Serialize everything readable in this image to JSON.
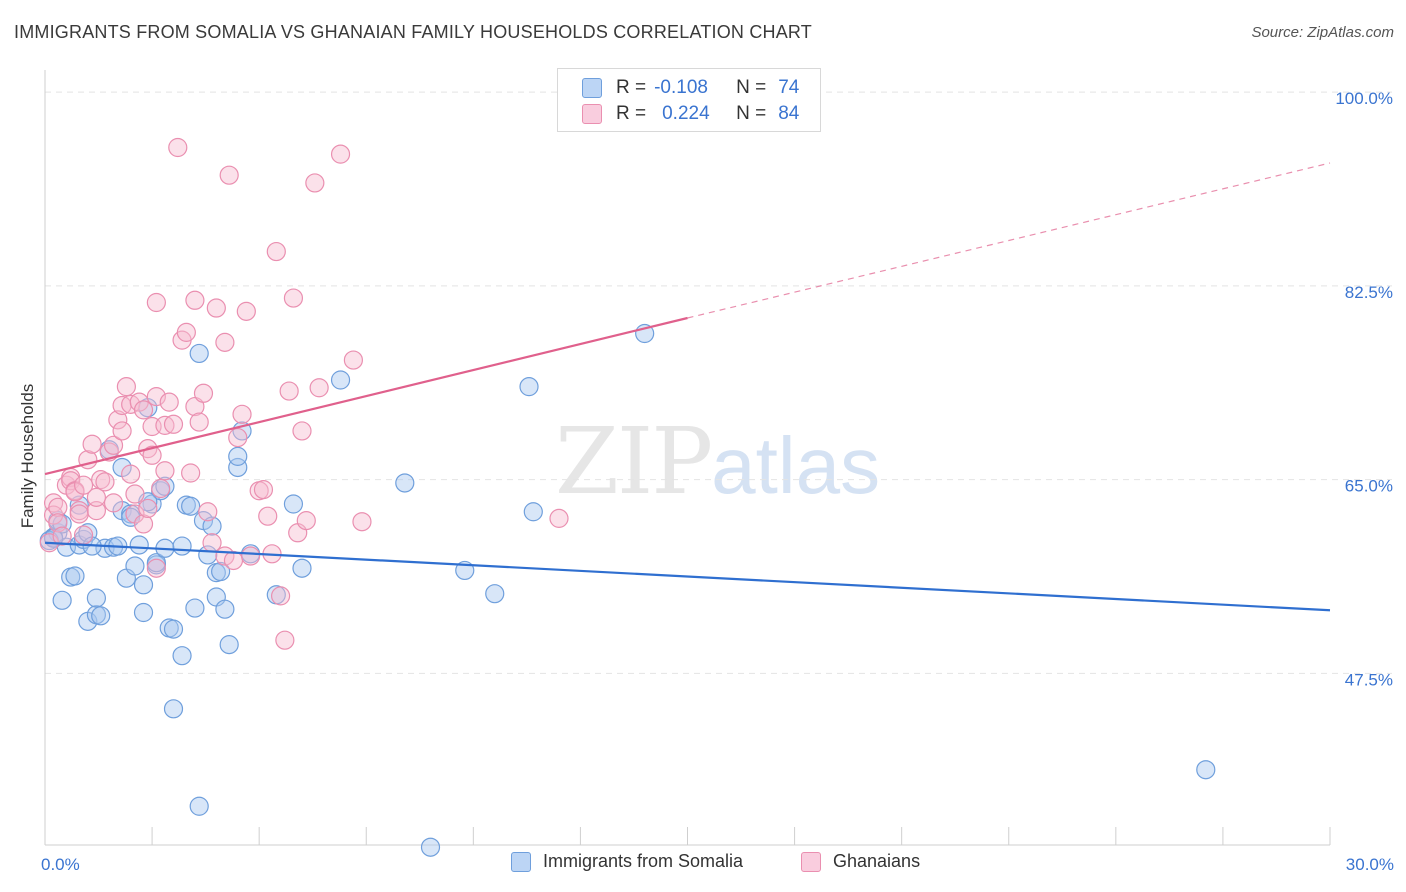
{
  "title": "IMMIGRANTS FROM SOMALIA VS GHANAIAN FAMILY HOUSEHOLDS CORRELATION CHART",
  "source": "Source: ZipAtlas.com",
  "watermark": {
    "zip": "ZIP",
    "atlas": "atlas"
  },
  "legend_top": [
    {
      "r_label": "R =",
      "r_value": "-0.108",
      "n_label": "N =",
      "n_value": "74"
    },
    {
      "r_label": "R =",
      "r_value": "0.224",
      "n_label": "N =",
      "n_value": "84"
    }
  ],
  "colors": {
    "blue_fill": "#a8c8f0",
    "blue_stroke": "#6f9fdc",
    "blue_line": "#2f6fd0",
    "pink_fill": "#f6bcd0",
    "pink_stroke": "#ea8fb0",
    "pink_line": "#e0608c",
    "grid": "#e4e4e4",
    "tick_label": "#3a74d0"
  },
  "chart_data": {
    "type": "scatter",
    "title": "IMMIGRANTS FROM SOMALIA VS GHANAIAN FAMILY HOUSEHOLDS CORRELATION CHART",
    "xlabel": "",
    "ylabel": "Family Households",
    "xlim": [
      0,
      30
    ],
    "ylim": [
      32,
      102
    ],
    "x_tick_labels": [
      {
        "value": 0,
        "label": "0.0%"
      },
      {
        "value": 30,
        "label": "30.0%"
      }
    ],
    "y_tick_labels": [
      {
        "value": 47.5,
        "label": "47.5%"
      },
      {
        "value": 65.0,
        "label": "65.0%"
      },
      {
        "value": 82.5,
        "label": "82.5%"
      },
      {
        "value": 100.0,
        "label": "100.0%"
      }
    ],
    "series": [
      {
        "name": "Immigrants from Somalia",
        "color_key": "blue",
        "trend": {
          "x": [
            0,
            30
          ],
          "y": [
            59.3,
            53.2
          ],
          "dashed_after": null
        },
        "points": [
          [
            0.2,
            59.8
          ],
          [
            0.3,
            60.2
          ],
          [
            0.3,
            61.3
          ],
          [
            0.4,
            61.0
          ],
          [
            0.5,
            58.9
          ],
          [
            0.4,
            54.1
          ],
          [
            0.6,
            56.2
          ],
          [
            0.7,
            56.3
          ],
          [
            0.8,
            59.1
          ],
          [
            0.9,
            59.6
          ],
          [
            1.0,
            60.2
          ],
          [
            0.8,
            62.7
          ],
          [
            1.0,
            52.2
          ],
          [
            1.2,
            52.8
          ],
          [
            1.2,
            54.3
          ],
          [
            1.3,
            52.7
          ],
          [
            1.4,
            58.8
          ],
          [
            1.6,
            58.9
          ],
          [
            1.7,
            59.0
          ],
          [
            1.5,
            67.7
          ],
          [
            1.8,
            66.1
          ],
          [
            1.8,
            62.2
          ],
          [
            1.9,
            56.1
          ],
          [
            2.0,
            61.9
          ],
          [
            2.2,
            59.1
          ],
          [
            2.1,
            57.2
          ],
          [
            2.3,
            55.5
          ],
          [
            2.3,
            53.0
          ],
          [
            2.4,
            71.5
          ],
          [
            2.5,
            62.8
          ],
          [
            2.6,
            57.3
          ],
          [
            2.6,
            57.5
          ],
          [
            2.7,
            64.0
          ],
          [
            2.8,
            64.4
          ],
          [
            2.8,
            58.8
          ],
          [
            2.9,
            51.6
          ],
          [
            3.0,
            51.5
          ],
          [
            3.0,
            44.3
          ],
          [
            3.2,
            49.1
          ],
          [
            3.3,
            62.7
          ],
          [
            3.4,
            62.6
          ],
          [
            3.6,
            76.4
          ],
          [
            3.7,
            61.3
          ],
          [
            3.5,
            53.4
          ],
          [
            3.6,
            35.5
          ],
          [
            3.8,
            58.2
          ],
          [
            3.9,
            60.8
          ],
          [
            4.0,
            54.4
          ],
          [
            4.0,
            56.6
          ],
          [
            4.1,
            56.7
          ],
          [
            4.2,
            53.3
          ],
          [
            4.3,
            50.1
          ],
          [
            4.5,
            66.1
          ],
          [
            4.5,
            67.1
          ],
          [
            4.6,
            69.4
          ],
          [
            4.8,
            58.3
          ],
          [
            5.4,
            54.6
          ],
          [
            5.8,
            62.8
          ],
          [
            6.0,
            57.0
          ],
          [
            6.9,
            74.0
          ],
          [
            8.4,
            64.7
          ],
          [
            9.0,
            31.8
          ],
          [
            9.8,
            56.8
          ],
          [
            10.5,
            54.7
          ],
          [
            11.3,
            73.4
          ],
          [
            11.4,
            62.1
          ],
          [
            14.0,
            78.2
          ],
          [
            27.1,
            38.8
          ],
          [
            0.1,
            59.5
          ],
          [
            0.2,
            59.7
          ],
          [
            1.1,
            59.0
          ],
          [
            2.4,
            63.0
          ],
          [
            3.2,
            59.0
          ],
          [
            2.0,
            61.6
          ]
        ]
      },
      {
        "name": "Ghanaians",
        "color_key": "pink",
        "trend": {
          "x": [
            0,
            15
          ],
          "y": [
            65.5,
            79.6
          ],
          "dashed_after": {
            "x": [
              15,
              30
            ],
            "y": [
              79.6,
              93.6
            ]
          }
        },
        "points": [
          [
            0.1,
            59.3
          ],
          [
            0.2,
            62.9
          ],
          [
            0.2,
            61.8
          ],
          [
            0.3,
            62.5
          ],
          [
            0.3,
            61.1
          ],
          [
            0.4,
            59.9
          ],
          [
            0.5,
            64.5
          ],
          [
            0.6,
            65.2
          ],
          [
            0.6,
            64.9
          ],
          [
            0.7,
            64.0
          ],
          [
            0.7,
            63.9
          ],
          [
            0.8,
            62.2
          ],
          [
            0.8,
            61.9
          ],
          [
            0.9,
            64.5
          ],
          [
            0.9,
            60.0
          ],
          [
            1.0,
            66.8
          ],
          [
            1.1,
            68.2
          ],
          [
            1.2,
            62.2
          ],
          [
            1.2,
            63.4
          ],
          [
            1.3,
            65.0
          ],
          [
            1.4,
            64.8
          ],
          [
            1.5,
            67.5
          ],
          [
            1.6,
            68.1
          ],
          [
            1.6,
            62.9
          ],
          [
            1.7,
            70.4
          ],
          [
            1.8,
            71.7
          ],
          [
            1.8,
            69.4
          ],
          [
            1.9,
            73.4
          ],
          [
            2.0,
            71.8
          ],
          [
            2.0,
            65.5
          ],
          [
            2.1,
            61.9
          ],
          [
            2.1,
            63.7
          ],
          [
            2.2,
            72.0
          ],
          [
            2.3,
            71.3
          ],
          [
            2.3,
            61.0
          ],
          [
            2.4,
            67.8
          ],
          [
            2.5,
            67.2
          ],
          [
            2.5,
            69.8
          ],
          [
            2.6,
            72.5
          ],
          [
            2.6,
            57.0
          ],
          [
            2.7,
            64.2
          ],
          [
            2.8,
            69.9
          ],
          [
            2.8,
            65.8
          ],
          [
            2.9,
            72.0
          ],
          [
            3.0,
            70.0
          ],
          [
            3.1,
            95.0
          ],
          [
            3.2,
            77.6
          ],
          [
            3.3,
            78.3
          ],
          [
            3.4,
            65.6
          ],
          [
            3.5,
            81.2
          ],
          [
            3.5,
            71.6
          ],
          [
            3.6,
            70.2
          ],
          [
            3.7,
            72.8
          ],
          [
            3.8,
            62.1
          ],
          [
            3.9,
            59.3
          ],
          [
            4.0,
            80.5
          ],
          [
            4.2,
            77.4
          ],
          [
            4.2,
            58.1
          ],
          [
            4.3,
            92.5
          ],
          [
            4.4,
            57.7
          ],
          [
            4.5,
            68.8
          ],
          [
            4.6,
            70.9
          ],
          [
            4.7,
            80.2
          ],
          [
            4.8,
            58.1
          ],
          [
            5.0,
            64.0
          ],
          [
            5.1,
            64.1
          ],
          [
            5.2,
            61.7
          ],
          [
            5.3,
            58.3
          ],
          [
            5.4,
            85.6
          ],
          [
            5.5,
            54.5
          ],
          [
            5.6,
            50.5
          ],
          [
            5.7,
            73.0
          ],
          [
            5.8,
            81.4
          ],
          [
            5.9,
            60.2
          ],
          [
            6.0,
            69.4
          ],
          [
            6.1,
            61.3
          ],
          [
            6.3,
            91.8
          ],
          [
            6.4,
            73.3
          ],
          [
            6.9,
            94.4
          ],
          [
            7.2,
            75.8
          ],
          [
            7.4,
            61.2
          ],
          [
            12.0,
            61.5
          ],
          [
            2.6,
            81.0
          ],
          [
            2.4,
            62.4
          ]
        ]
      }
    ]
  }
}
